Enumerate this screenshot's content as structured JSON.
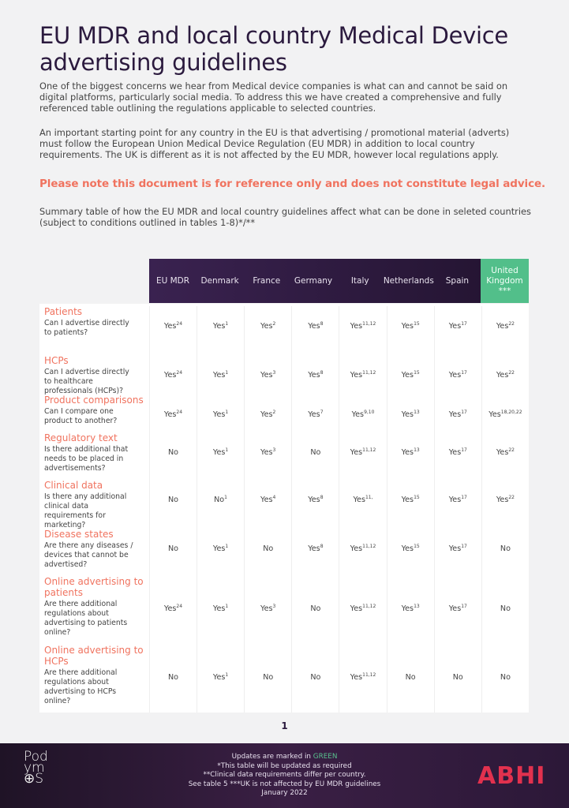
{
  "title": "EU MDR and local country Medical Device advertising guidelines",
  "intro1": "One of the biggest concerns we hear from Medical device companies is what can and cannot be said on digital platforms, particularly social media. To address this we have created a comprehensive and fully referenced table outlining the regulations applicable to selected countries.",
  "intro2": "An important starting point for any country in the EU is that advertising / promotional material (adverts) must follow the European Union Medical Device Regulation (EU MDR) in addition to local country requirements. The UK is different as it is not affected by the EU MDR, however local regulations apply.",
  "warning": "Please note this document is for reference only and does not constitute legal advice.",
  "summary": "Summary table of how the EU MDR and local country guidelines affect what can be done in seleted countries (subject to conditions outlined in tables 1-8)*/**",
  "columns": [
    "EU MDR",
    "Denmark",
    "France",
    "Germany",
    "Italy",
    "Netherlands",
    "Spain",
    "United Kingdom ***"
  ],
  "accent_green": "#52bf8a",
  "accent_coral": "#f0735f",
  "rows": [
    {
      "title": "Patients",
      "question": "Can I advertise directly to patients?",
      "cells": [
        [
          "Yes",
          "24"
        ],
        [
          "Yes",
          "1"
        ],
        [
          "Yes",
          "2"
        ],
        [
          "Yes",
          "8"
        ],
        [
          "Yes",
          "11,12"
        ],
        [
          "Yes",
          "15"
        ],
        [
          "Yes",
          "17"
        ],
        [
          "Yes",
          "22"
        ]
      ]
    },
    {
      "title": "HCPs",
      "question": "Can I advertise directly to healthcare professionals (HCPs)?",
      "cells": [
        [
          "Yes",
          "24"
        ],
        [
          "Yes",
          "1"
        ],
        [
          "Yes",
          "3"
        ],
        [
          "Yes",
          "8"
        ],
        [
          "Yes",
          "11,12"
        ],
        [
          "Yes",
          "15"
        ],
        [
          "Yes",
          "17"
        ],
        [
          "Yes",
          "22"
        ]
      ]
    },
    {
      "title": "Product comparisons",
      "question": "Can I compare one product to another?",
      "cells": [
        [
          "Yes",
          "24"
        ],
        [
          "Yes",
          "1"
        ],
        [
          "Yes",
          "2"
        ],
        [
          "Yes",
          "7"
        ],
        [
          "Yes",
          "9,10"
        ],
        [
          "Yes",
          "13"
        ],
        [
          "Yes",
          "17"
        ],
        [
          "Yes",
          "18,20,22"
        ]
      ]
    },
    {
      "title": "Regulatory text",
      "question": "Is there additional that needs to be placed in advertisements?",
      "cells": [
        [
          "No",
          ""
        ],
        [
          "Yes",
          "1"
        ],
        [
          "Yes",
          "3"
        ],
        [
          "No",
          ""
        ],
        [
          "Yes",
          "11,12"
        ],
        [
          "Yes",
          "13"
        ],
        [
          "Yes",
          "17"
        ],
        [
          "Yes",
          "22"
        ]
      ]
    },
    {
      "title": "Clinical data",
      "question": "Is there any additional clinical data requirements for marketing?",
      "cells": [
        [
          "No",
          ""
        ],
        [
          "No",
          "1"
        ],
        [
          "Yes",
          "4"
        ],
        [
          "Yes",
          "8"
        ],
        [
          "Yes",
          "11,"
        ],
        [
          "Yes",
          "15"
        ],
        [
          "Yes",
          "17"
        ],
        [
          "Yes",
          "22"
        ]
      ]
    },
    {
      "title": "Disease states",
      "question": "Are there any diseases / devices that cannot be advertised?",
      "cells": [
        [
          "No",
          ""
        ],
        [
          "Yes",
          "1"
        ],
        [
          "No",
          ""
        ],
        [
          "Yes",
          "8"
        ],
        [
          "Yes",
          "11,12"
        ],
        [
          "Yes",
          "15"
        ],
        [
          "Yes",
          "17"
        ],
        [
          "No",
          ""
        ]
      ]
    },
    {
      "title": "Online advertising to patients",
      "question": "Are there additional regulations about advertising to patients online?",
      "cells": [
        [
          "Yes",
          "24"
        ],
        [
          "Yes",
          "1"
        ],
        [
          "Yes",
          "3"
        ],
        [
          "No",
          ""
        ],
        [
          "Yes",
          "11,12"
        ],
        [
          "Yes",
          "13"
        ],
        [
          "Yes",
          "17"
        ],
        [
          "No",
          ""
        ]
      ]
    },
    {
      "title": "Online advertising to HCPs",
      "question": "Are there additional regulations about advertising to HCPs online?",
      "cells": [
        [
          "No",
          ""
        ],
        [
          "Yes",
          "1"
        ],
        [
          "No",
          ""
        ],
        [
          "No",
          ""
        ],
        [
          "Yes",
          "11,12"
        ],
        [
          "No",
          ""
        ],
        [
          "No",
          ""
        ],
        [
          "No",
          ""
        ]
      ]
    }
  ],
  "page_number": "1",
  "footer": {
    "line1_prefix": "Updates are marked in ",
    "line1_green": "GREEN",
    "line2": "*This table will be updated as required",
    "line3": "**Clinical data requirements differ per country.",
    "line4": "See table 5 ***UK is not affected by EU MDR guidelines",
    "line5": "January 2022",
    "logo_left": "Podymos",
    "logo_right": "ABHI"
  }
}
